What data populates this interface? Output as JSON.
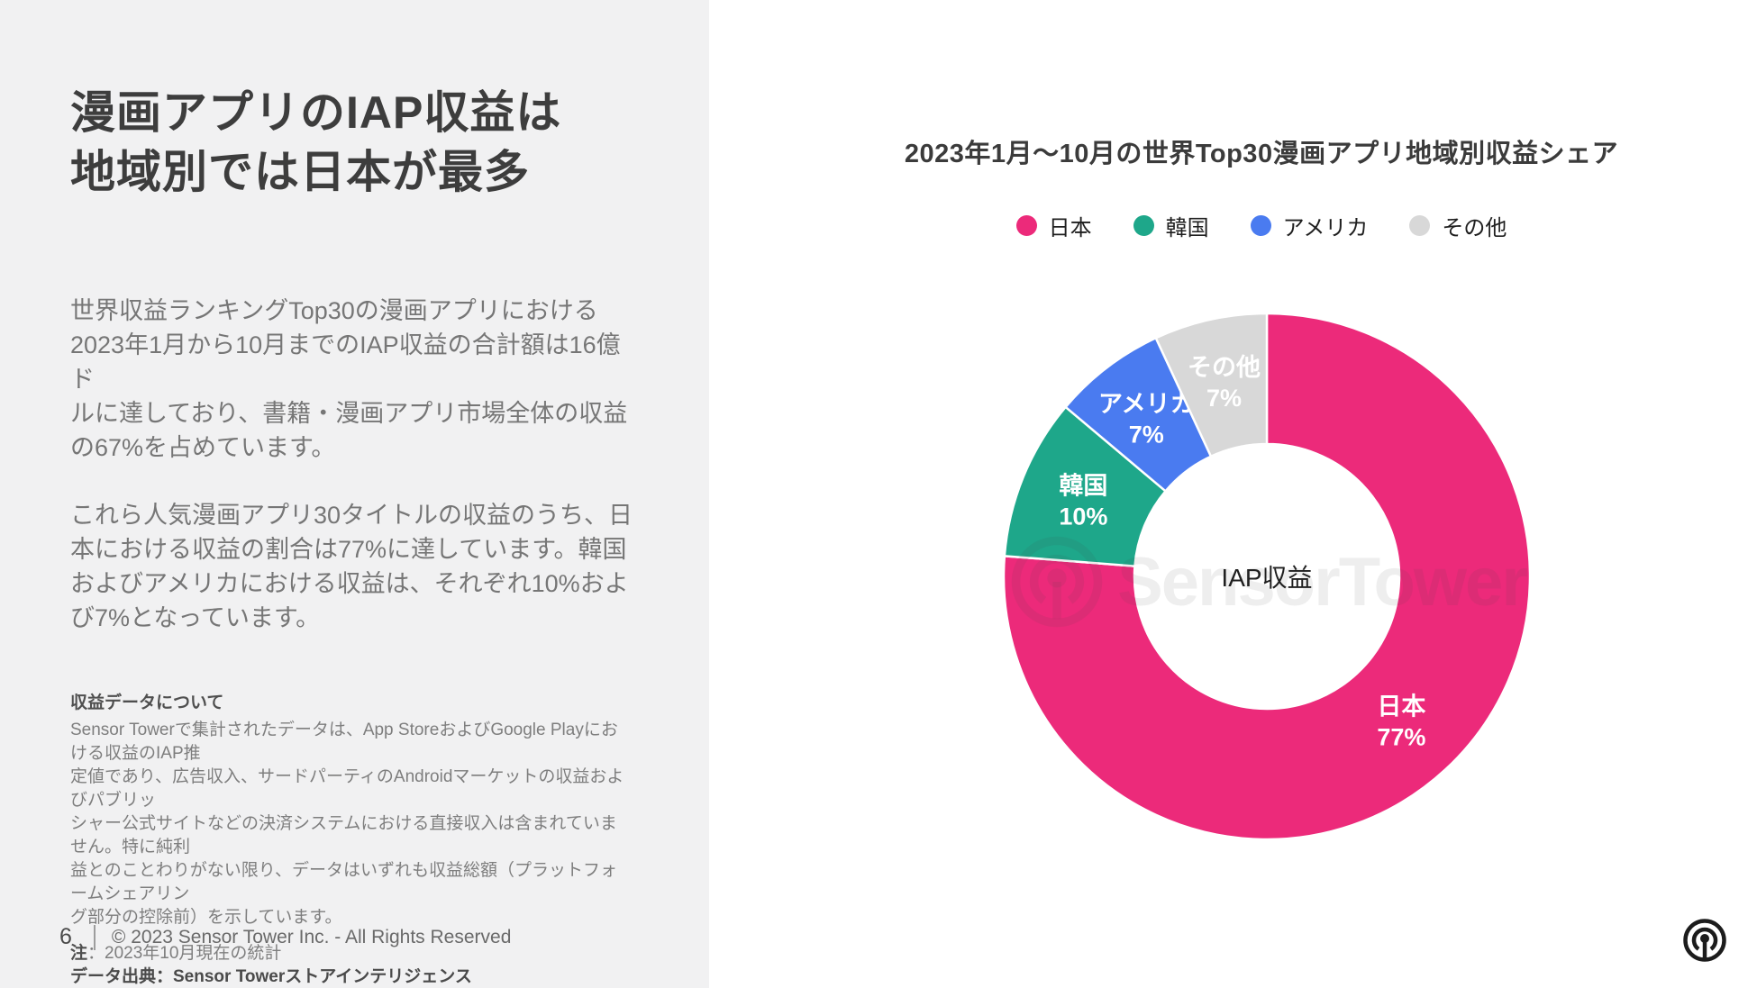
{
  "page": {
    "number": "6",
    "copyright": "© 2023 Sensor Tower Inc. - All Rights Reserved"
  },
  "left_panel": {
    "title": "漫画アプリのIAP収益は\n地域別では日本が最多",
    "paragraph_1": "世界収益ランキングTop30の漫画アプリにおける\n2023年1月から10月までのIAP収益の合計額は16億ド\nルに達しており、書籍・漫画アプリ市場全体の収益\nの67%を占めています。",
    "paragraph_2": "これら人気漫画アプリ30タイトルの収益のうち、日\n本における収益の割合は77%に達しています。韓国\nおよびアメリカにおける収益は、それぞれ10%およ\nび7%となっています。",
    "notes": {
      "heading": "収益データについて",
      "body": "Sensor Towerで集計されたデータは、App StoreおよびGoogle Playにおける収益のIAP推\n定値であり、広告収入、サードパーティのAndroidマーケットの収益およびパブリッ\nシャー公式サイトなどの決済システムにおける直接収入は含まれていません。特に純利\n益とのことわりがない限り、データはいずれも収益総額（プラットフォームシェアリン\nグ部分の控除前）を示しています。",
      "note_label": "注",
      "note_rest": "：2023年10月現在の統計",
      "source": "データ出典：Sensor Towerストアインテリジェンス"
    }
  },
  "chart": {
    "title": "2023年1月〜10月の世界Top30漫画アプリ地域別収益シェア",
    "center_label": "IAP収益",
    "watermark_text": "SensorTower"
  },
  "chart_data": {
    "type": "pie",
    "subtype": "donut",
    "title": "2023年1月〜10月の世界Top30漫画アプリ地域別収益シェア",
    "categories": [
      "日本",
      "韓国",
      "アメリカ",
      "その他"
    ],
    "values": [
      77,
      10,
      7,
      7
    ],
    "unit": "%",
    "colors": [
      "#EC2A7A",
      "#1EA78A",
      "#4A7BF0",
      "#D8D8D8"
    ],
    "center_label": "IAP収益",
    "start_angle_deg": 0,
    "direction": "clockwise",
    "legend_position": "top",
    "slice_label_color": "#FFFFFF"
  },
  "colors": {
    "left_panel_bg": "#F1F1F2",
    "accent_pink": "#EC2A7A",
    "logo_dark": "#1C1C1C"
  }
}
